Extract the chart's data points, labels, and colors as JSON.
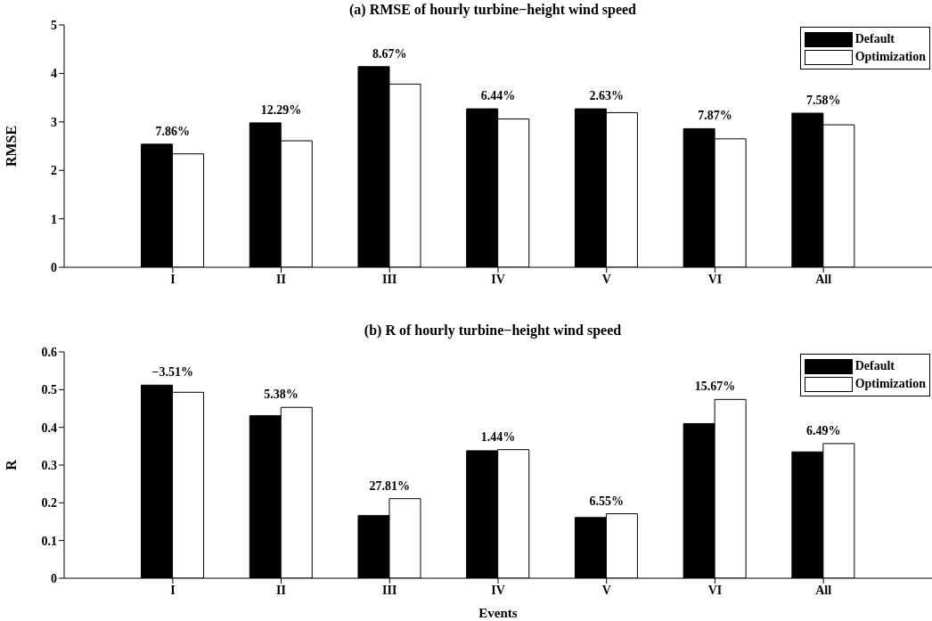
{
  "chart_data": [
    {
      "type": "bar",
      "title": "(a) RMSE of hourly turbine−height wind speed",
      "ylabel": "RMSE",
      "categories": [
        "I",
        "II",
        "III",
        "IV",
        "V",
        "VI",
        "All"
      ],
      "series": [
        {
          "name": "Default",
          "color": "#000000",
          "values": [
            2.54,
            2.98,
            4.14,
            3.27,
            3.27,
            2.86,
            3.18
          ]
        },
        {
          "name": "Optimization",
          "color": "#ffffff",
          "values": [
            2.34,
            2.61,
            3.78,
            3.06,
            3.19,
            2.65,
            2.94
          ]
        }
      ],
      "ylim": [
        0,
        5
      ],
      "yticks": [
        0,
        1,
        2,
        3,
        4,
        5
      ],
      "legend": "top right",
      "grid": false,
      "annotations": [
        {
          "text": "7.86%",
          "x": "I",
          "y": 2.54
        },
        {
          "text": "12.29%",
          "x": "II",
          "y": 2.98
        },
        {
          "text": "8.67%",
          "x": "III",
          "y": 4.14
        },
        {
          "text": "6.44%",
          "x": "IV",
          "y": 3.27
        },
        {
          "text": "2.63%",
          "x": "V",
          "y": 3.27
        },
        {
          "text": "7.87%",
          "x": "VI",
          "y": 2.86
        },
        {
          "text": "7.58%",
          "x": "All",
          "y": 3.18
        }
      ]
    },
    {
      "type": "bar",
      "title": "(b) R of hourly turbine−height wind speed",
      "ylabel": "R",
      "xlabel": "Events",
      "categories": [
        "I",
        "II",
        "III",
        "IV",
        "V",
        "VI",
        "All"
      ],
      "series": [
        {
          "name": "Default",
          "color": "#000000",
          "values": [
            0.512,
            0.431,
            0.166,
            0.338,
            0.161,
            0.41,
            0.335
          ]
        },
        {
          "name": "Optimization",
          "color": "#ffffff",
          "values": [
            0.493,
            0.453,
            0.211,
            0.341,
            0.171,
            0.474,
            0.357
          ]
        }
      ],
      "ylim": [
        0,
        0.6
      ],
      "yticks": [
        0,
        0.1,
        0.2,
        0.3,
        0.4,
        0.5,
        0.6
      ],
      "legend": "top right",
      "grid": false,
      "annotations": [
        {
          "text": "−3.51%",
          "x": "I",
          "y": 0.512
        },
        {
          "text": "5.38%",
          "x": "II",
          "y": 0.453
        },
        {
          "text": "27.81%",
          "x": "III",
          "y": 0.211
        },
        {
          "text": "1.44%",
          "x": "IV",
          "y": 0.341
        },
        {
          "text": "6.55%",
          "x": "V",
          "y": 0.171
        },
        {
          "text": "15.67%",
          "x": "VI",
          "y": 0.474
        },
        {
          "text": "6.49%",
          "x": "All",
          "y": 0.357
        }
      ]
    }
  ]
}
